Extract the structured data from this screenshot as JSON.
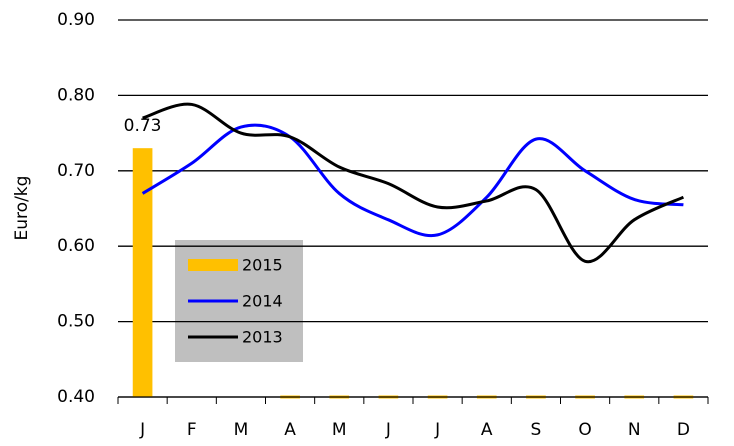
{
  "chart_data": {
    "type": "bar_line",
    "y_label": "Euro/kg",
    "categories": [
      "J",
      "F",
      "M",
      "A",
      "M",
      "J",
      "J",
      "A",
      "S",
      "O",
      "N",
      "D"
    ],
    "series": [
      {
        "name": "2015",
        "type": "bar",
        "color": "#ffc000",
        "values": [
          0.73,
          null,
          null,
          0,
          0,
          0,
          0,
          0,
          0,
          0,
          0,
          0
        ],
        "value_labels": [
          "0.73",
          null,
          null,
          null,
          null,
          null,
          null,
          null,
          null,
          null,
          null,
          null
        ]
      },
      {
        "name": "2014",
        "type": "line",
        "color": "#0000ff",
        "values": [
          0.67,
          0.71,
          0.758,
          0.745,
          0.67,
          0.635,
          0.615,
          0.665,
          0.742,
          0.7,
          0.662,
          0.655
        ]
      },
      {
        "name": "2013",
        "type": "line",
        "color": "#000000",
        "values": [
          0.77,
          0.788,
          0.75,
          0.745,
          0.705,
          0.683,
          0.652,
          0.66,
          0.675,
          0.58,
          0.635,
          0.665
        ]
      }
    ],
    "ylim": [
      0.4,
      0.9
    ],
    "yticks": [
      {
        "value": 0.4,
        "label": "0.40"
      },
      {
        "value": 0.5,
        "label": "0.50"
      },
      {
        "value": 0.6,
        "label": "0.60"
      },
      {
        "value": 0.7,
        "label": "0.70"
      },
      {
        "value": 0.8,
        "label": "0.80"
      },
      {
        "value": 0.9,
        "label": "0.90"
      }
    ],
    "grid": true
  }
}
